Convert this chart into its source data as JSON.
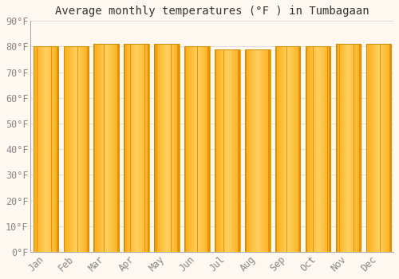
{
  "title": "Average monthly temperatures (°F ) in Tumbagaan",
  "months": [
    "Jan",
    "Feb",
    "Mar",
    "Apr",
    "May",
    "Jun",
    "Jul",
    "Aug",
    "Sep",
    "Oct",
    "Nov",
    "Dec"
  ],
  "values": [
    80,
    80,
    81,
    81,
    81,
    80,
    79,
    79,
    80,
    80,
    81,
    81
  ],
  "ylim": [
    0,
    90
  ],
  "yticks": [
    0,
    10,
    20,
    30,
    40,
    50,
    60,
    70,
    80,
    90
  ],
  "ytick_labels": [
    "0°F",
    "10°F",
    "20°F",
    "30°F",
    "40°F",
    "50°F",
    "60°F",
    "70°F",
    "80°F",
    "90°F"
  ],
  "bar_color_edge": "#E8920A",
  "bar_color_center": "#FFD060",
  "bar_color_main": "#FBAD18",
  "background_color": "#FFF8F0",
  "grid_color": "#DDDDDD",
  "title_fontsize": 10,
  "tick_fontsize": 8.5,
  "bar_width": 0.82,
  "tick_color": "#888888"
}
